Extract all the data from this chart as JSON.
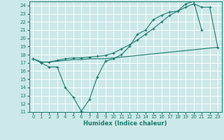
{
  "xlabel": "Humidex (Indice chaleur)",
  "bg_color": "#cce8e8",
  "line_color": "#1a7a6e",
  "grid_color": "#ffffff",
  "xlim": [
    -0.5,
    23.5
  ],
  "ylim": [
    11,
    24.5
  ],
  "xticks": [
    0,
    1,
    2,
    3,
    4,
    5,
    6,
    7,
    8,
    9,
    10,
    11,
    12,
    13,
    14,
    15,
    16,
    17,
    18,
    19,
    20,
    21,
    22,
    23
  ],
  "yticks": [
    11,
    12,
    13,
    14,
    15,
    16,
    17,
    18,
    19,
    20,
    21,
    22,
    23,
    24
  ],
  "line1_x": [
    0,
    1,
    2,
    3,
    4,
    5,
    6,
    7,
    8,
    9,
    10,
    11,
    12,
    13,
    14,
    15,
    16,
    17,
    18,
    19,
    20,
    21
  ],
  "line1_y": [
    17.5,
    17.0,
    16.5,
    16.5,
    14.0,
    12.8,
    11.1,
    12.5,
    15.3,
    17.2,
    17.5,
    18.0,
    19.0,
    20.5,
    21.0,
    22.3,
    22.8,
    23.2,
    23.3,
    24.2,
    24.5,
    21.0
  ],
  "line2_x": [
    0,
    1,
    2,
    3,
    4,
    5,
    6,
    7,
    8,
    9,
    10,
    11,
    12,
    13,
    14,
    15,
    16,
    17,
    18,
    19,
    20,
    21,
    22,
    23
  ],
  "line2_y": [
    17.5,
    17.1,
    17.1,
    17.2,
    17.3,
    17.4,
    17.4,
    17.5,
    17.5,
    17.5,
    17.6,
    17.7,
    17.8,
    17.9,
    18.0,
    18.1,
    18.2,
    18.3,
    18.4,
    18.5,
    18.6,
    18.7,
    18.8,
    18.9
  ],
  "line3_x": [
    0,
    1,
    2,
    3,
    4,
    5,
    6,
    7,
    8,
    9,
    10,
    11,
    12,
    13,
    14,
    15,
    16,
    17,
    18,
    19,
    20,
    21,
    22,
    23
  ],
  "line3_y": [
    17.5,
    17.1,
    17.1,
    17.3,
    17.5,
    17.6,
    17.6,
    17.7,
    17.8,
    17.9,
    18.2,
    18.7,
    19.2,
    19.8,
    20.5,
    21.2,
    22.0,
    22.8,
    23.3,
    23.8,
    24.2,
    23.8,
    23.8,
    18.9
  ]
}
